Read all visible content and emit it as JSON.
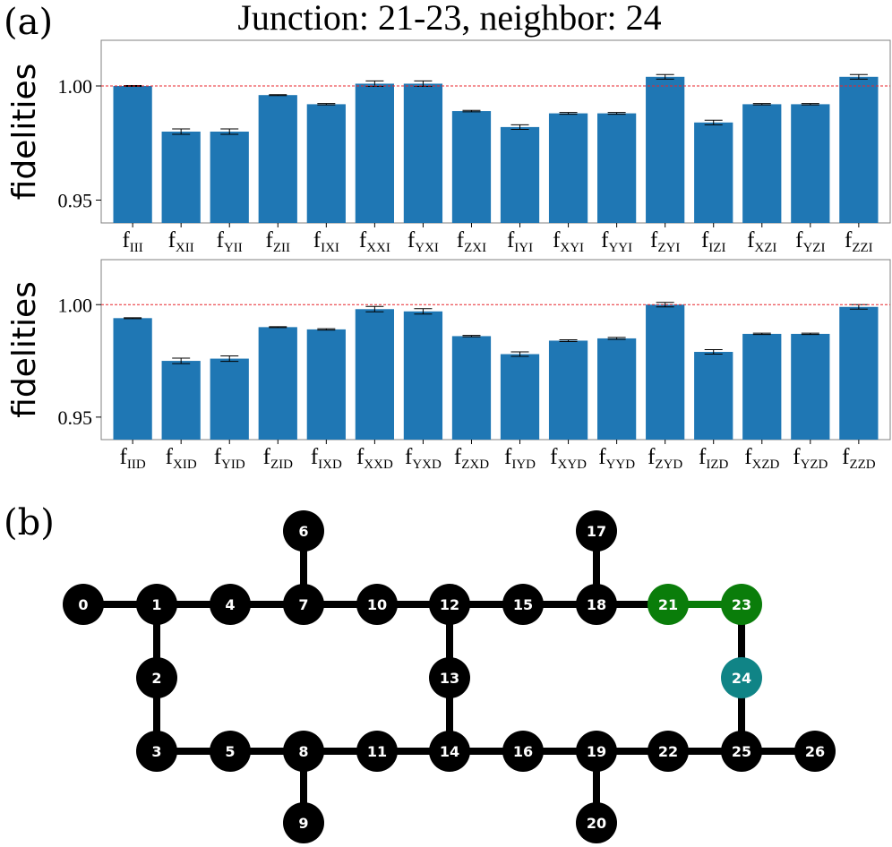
{
  "panel_a": {
    "label": "(a)",
    "title": "Junction: 21-23, neighbor: 24"
  },
  "panel_b": {
    "label": "(b)"
  },
  "chart_data": [
    {
      "type": "bar",
      "title": "Junction: 21-23, neighbor: 24",
      "ylabel": "fidelities",
      "ylim": [
        0.94,
        1.02
      ],
      "yticks": [
        "0.95",
        "1.00"
      ],
      "yticks_values": [
        0.95,
        1.0
      ],
      "reference_line": {
        "y": 1.0,
        "color": "#e8262b",
        "style": "dashed"
      },
      "bar_color": "#1f77b4",
      "categories": [
        "f_III",
        "f_XII",
        "f_YII",
        "f_ZII",
        "f_IXI",
        "f_XXI",
        "f_YXI",
        "f_ZXI",
        "f_IYI",
        "f_XYI",
        "f_YYI",
        "f_ZYI",
        "f_IZI",
        "f_XZI",
        "f_YZI",
        "f_ZZI"
      ],
      "tick_labels": [
        {
          "main": "f",
          "sub": "III"
        },
        {
          "main": "f",
          "sub": "XII"
        },
        {
          "main": "f",
          "sub": "YII"
        },
        {
          "main": "f",
          "sub": "ZII"
        },
        {
          "main": "f",
          "sub": "IXI"
        },
        {
          "main": "f",
          "sub": "XXI"
        },
        {
          "main": "f",
          "sub": "YXI"
        },
        {
          "main": "f",
          "sub": "ZXI"
        },
        {
          "main": "f",
          "sub": "IYI"
        },
        {
          "main": "f",
          "sub": "XYI"
        },
        {
          "main": "f",
          "sub": "YYI"
        },
        {
          "main": "f",
          "sub": "ZYI"
        },
        {
          "main": "f",
          "sub": "IZI"
        },
        {
          "main": "f",
          "sub": "XZI"
        },
        {
          "main": "f",
          "sub": "YZI"
        },
        {
          "main": "f",
          "sub": "ZZI"
        }
      ],
      "values": [
        1.0,
        0.98,
        0.98,
        0.996,
        0.992,
        1.001,
        1.001,
        0.989,
        0.982,
        0.988,
        0.988,
        1.004,
        0.984,
        0.992,
        0.992,
        1.004
      ],
      "errors": [
        0.0002,
        0.0012,
        0.0012,
        0.0002,
        0.0003,
        0.0012,
        0.0012,
        0.0003,
        0.001,
        0.0004,
        0.0004,
        0.001,
        0.001,
        0.0003,
        0.0003,
        0.001
      ]
    },
    {
      "type": "bar",
      "ylabel": "fidelities",
      "ylim": [
        0.94,
        1.02
      ],
      "yticks": [
        "0.95",
        "1.00"
      ],
      "yticks_values": [
        0.95,
        1.0
      ],
      "reference_line": {
        "y": 1.0,
        "color": "#e8262b",
        "style": "dashed"
      },
      "bar_color": "#1f77b4",
      "categories": [
        "f_IID",
        "f_XID",
        "f_YID",
        "f_ZID",
        "f_IXD",
        "f_XXD",
        "f_YXD",
        "f_ZXD",
        "f_IYD",
        "f_XYD",
        "f_YYD",
        "f_ZYD",
        "f_IZD",
        "f_XZD",
        "f_YZD",
        "f_ZZD"
      ],
      "tick_labels": [
        {
          "main": "f",
          "sub": "IID"
        },
        {
          "main": "f",
          "sub": "XID"
        },
        {
          "main": "f",
          "sub": "YID"
        },
        {
          "main": "f",
          "sub": "ZID"
        },
        {
          "main": "f",
          "sub": "IXD"
        },
        {
          "main": "f",
          "sub": "XXD"
        },
        {
          "main": "f",
          "sub": "YXD"
        },
        {
          "main": "f",
          "sub": "ZXD"
        },
        {
          "main": "f",
          "sub": "IYD"
        },
        {
          "main": "f",
          "sub": "XYD"
        },
        {
          "main": "f",
          "sub": "YYD"
        },
        {
          "main": "f",
          "sub": "ZYD"
        },
        {
          "main": "f",
          "sub": "IZD"
        },
        {
          "main": "f",
          "sub": "XZD"
        },
        {
          "main": "f",
          "sub": "YZD"
        },
        {
          "main": "f",
          "sub": "ZZD"
        }
      ],
      "values": [
        0.994,
        0.975,
        0.976,
        0.99,
        0.989,
        0.998,
        0.997,
        0.986,
        0.978,
        0.984,
        0.985,
        1.0,
        0.979,
        0.987,
        0.987,
        0.999
      ],
      "errors": [
        0.0002,
        0.0012,
        0.0012,
        0.0002,
        0.0003,
        0.0012,
        0.0012,
        0.0003,
        0.001,
        0.0004,
        0.0004,
        0.001,
        0.001,
        0.0003,
        0.0003,
        0.001
      ]
    }
  ],
  "graph": {
    "colors": {
      "node": "#000000",
      "junction": "#0a7d0a",
      "neighbor": "#108486",
      "edge": "#000000",
      "junction_edge": "#0a7d0a"
    },
    "nodes": [
      {
        "id": "0",
        "label": "0",
        "role": "node"
      },
      {
        "id": "1",
        "label": "1",
        "role": "node"
      },
      {
        "id": "2",
        "label": "2",
        "role": "node"
      },
      {
        "id": "3",
        "label": "3",
        "role": "node"
      },
      {
        "id": "4",
        "label": "4",
        "role": "node"
      },
      {
        "id": "5",
        "label": "5",
        "role": "node"
      },
      {
        "id": "6",
        "label": "6",
        "role": "node"
      },
      {
        "id": "7",
        "label": "7",
        "role": "node"
      },
      {
        "id": "8",
        "label": "8",
        "role": "node"
      },
      {
        "id": "9",
        "label": "9",
        "role": "node"
      },
      {
        "id": "10",
        "label": "10",
        "role": "node"
      },
      {
        "id": "11",
        "label": "11",
        "role": "node"
      },
      {
        "id": "12",
        "label": "12",
        "role": "node"
      },
      {
        "id": "13",
        "label": "13",
        "role": "node"
      },
      {
        "id": "14",
        "label": "14",
        "role": "node"
      },
      {
        "id": "15",
        "label": "15",
        "role": "node"
      },
      {
        "id": "16",
        "label": "16",
        "role": "node"
      },
      {
        "id": "17",
        "label": "17",
        "role": "node"
      },
      {
        "id": "18",
        "label": "18",
        "role": "node"
      },
      {
        "id": "19",
        "label": "19",
        "role": "node"
      },
      {
        "id": "20",
        "label": "20",
        "role": "node"
      },
      {
        "id": "21",
        "label": "21",
        "role": "junction"
      },
      {
        "id": "22",
        "label": "22",
        "role": "node"
      },
      {
        "id": "23",
        "label": "23",
        "role": "junction"
      },
      {
        "id": "24",
        "label": "24",
        "role": "neighbor"
      },
      {
        "id": "25",
        "label": "25",
        "role": "node"
      },
      {
        "id": "26",
        "label": "26",
        "role": "node"
      }
    ],
    "edges": [
      [
        "0",
        "1"
      ],
      [
        "1",
        "4"
      ],
      [
        "4",
        "7"
      ],
      [
        "7",
        "10"
      ],
      [
        "10",
        "12"
      ],
      [
        "12",
        "15"
      ],
      [
        "15",
        "18"
      ],
      [
        "18",
        "21"
      ],
      [
        "21",
        "23"
      ],
      [
        "6",
        "7"
      ],
      [
        "17",
        "18"
      ],
      [
        "1",
        "2"
      ],
      [
        "2",
        "3"
      ],
      [
        "12",
        "13"
      ],
      [
        "13",
        "14"
      ],
      [
        "23",
        "24"
      ],
      [
        "24",
        "25"
      ],
      [
        "3",
        "5"
      ],
      [
        "5",
        "8"
      ],
      [
        "8",
        "11"
      ],
      [
        "11",
        "14"
      ],
      [
        "14",
        "16"
      ],
      [
        "16",
        "19"
      ],
      [
        "19",
        "22"
      ],
      [
        "22",
        "25"
      ],
      [
        "25",
        "26"
      ],
      [
        "8",
        "9"
      ],
      [
        "19",
        "20"
      ]
    ]
  }
}
